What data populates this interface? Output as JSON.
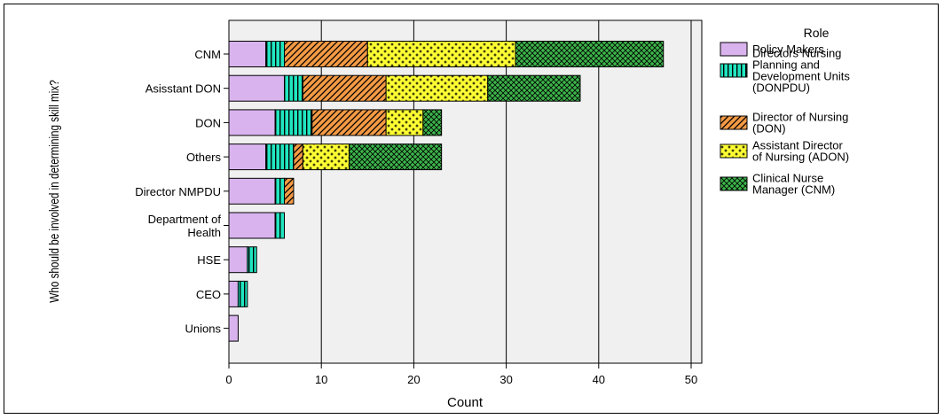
{
  "chart_data": {
    "type": "bar",
    "orientation": "horizontal",
    "stacked": true,
    "xlabel": "Count",
    "ylabel": "Who should be involved in determining skill mix?",
    "xlim": [
      0,
      50
    ],
    "xticks": [
      0,
      10,
      20,
      30,
      40,
      50
    ],
    "grid": true,
    "legend_placement": "right",
    "legend_title": "Role",
    "categories": [
      "CNM",
      "Asisstant DON",
      "DON",
      "Others",
      "Director NMPDU",
      "Department of Health",
      "HSE",
      "CEO",
      "Unions"
    ],
    "category_display": [
      [
        "CNM"
      ],
      [
        "Asisstant DON"
      ],
      [
        "DON"
      ],
      [
        "Others"
      ],
      [
        "Director NMPDU"
      ],
      [
        "Department of",
        "Health"
      ],
      [
        "HSE"
      ],
      [
        "CEO"
      ],
      [
        "Unions"
      ]
    ],
    "series": [
      {
        "name": "Policy Makers",
        "legend_lines": [
          "Policy Makers"
        ],
        "color": "#d9b3ee",
        "pattern": "solid",
        "values": [
          4,
          6,
          5,
          4,
          5,
          5,
          2,
          1,
          1
        ]
      },
      {
        "name": "Directors Nursing Planning and Development Units (DONPDU)",
        "legend_lines": [
          "Directors Nursing",
          "Planning and",
          "Development Units",
          "(DONPDU)"
        ],
        "color": "#20e6c0",
        "pattern": "vertical-stripes",
        "values": [
          2,
          2,
          4,
          3,
          1,
          1,
          1,
          1,
          0
        ]
      },
      {
        "name": "Director of Nursing (DON)",
        "legend_lines": [
          "Director of Nursing",
          "(DON)"
        ],
        "color": "#f59a44",
        "pattern": "diagonal-stripes",
        "values": [
          9,
          9,
          8,
          1,
          1,
          0,
          0,
          0,
          0
        ]
      },
      {
        "name": "Assistant Director of Nursing (ADON)",
        "legend_lines": [
          "Assistant Director",
          "of Nursing (ADON)"
        ],
        "color": "#ffff33",
        "pattern": "crosses",
        "values": [
          16,
          11,
          4,
          5,
          0,
          0,
          0,
          0,
          0
        ]
      },
      {
        "name": "Clinical Nurse Manager (CNM)",
        "legend_lines": [
          "Clinical Nurse",
          "Manager (CNM)"
        ],
        "color": "#3cb44a",
        "pattern": "crosshatch",
        "values": [
          16,
          10,
          2,
          10,
          0,
          0,
          0,
          0,
          0
        ]
      }
    ]
  }
}
